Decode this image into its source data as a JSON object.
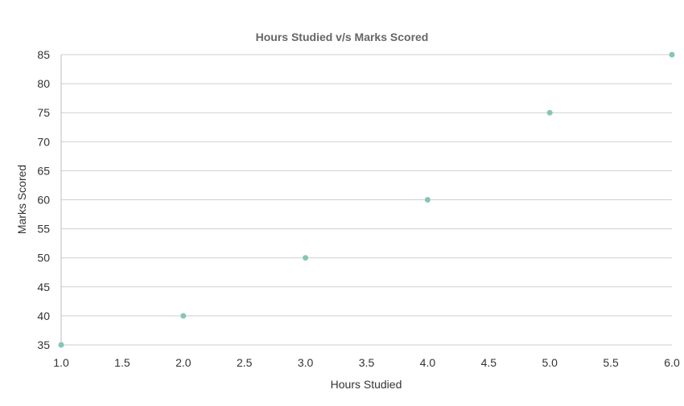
{
  "chart_data": {
    "type": "scatter",
    "title": "Hours Studied v/s Marks Scored",
    "xlabel": "Hours Studied",
    "ylabel": "Marks Scored",
    "xlim": [
      1.0,
      6.0
    ],
    "ylim": [
      35,
      85
    ],
    "x_ticks": [
      "1.0",
      "1.5",
      "2.0",
      "2.5",
      "3.0",
      "3.5",
      "4.0",
      "4.5",
      "5.0",
      "5.5",
      "6.0"
    ],
    "y_ticks": [
      "35",
      "40",
      "45",
      "50",
      "55",
      "60",
      "65",
      "70",
      "75",
      "80",
      "85"
    ],
    "grid": true,
    "series": [
      {
        "points": [
          {
            "x": 1.0,
            "y": 35
          },
          {
            "x": 2.0,
            "y": 40
          },
          {
            "x": 3.0,
            "y": 50
          },
          {
            "x": 4.0,
            "y": 60
          },
          {
            "x": 5.0,
            "y": 75
          },
          {
            "x": 6.0,
            "y": 85
          }
        ]
      }
    ],
    "colors": {
      "marker": "#86c5b8",
      "grid": "#cfcfcf",
      "text": "#333333",
      "title": "#666666"
    }
  }
}
